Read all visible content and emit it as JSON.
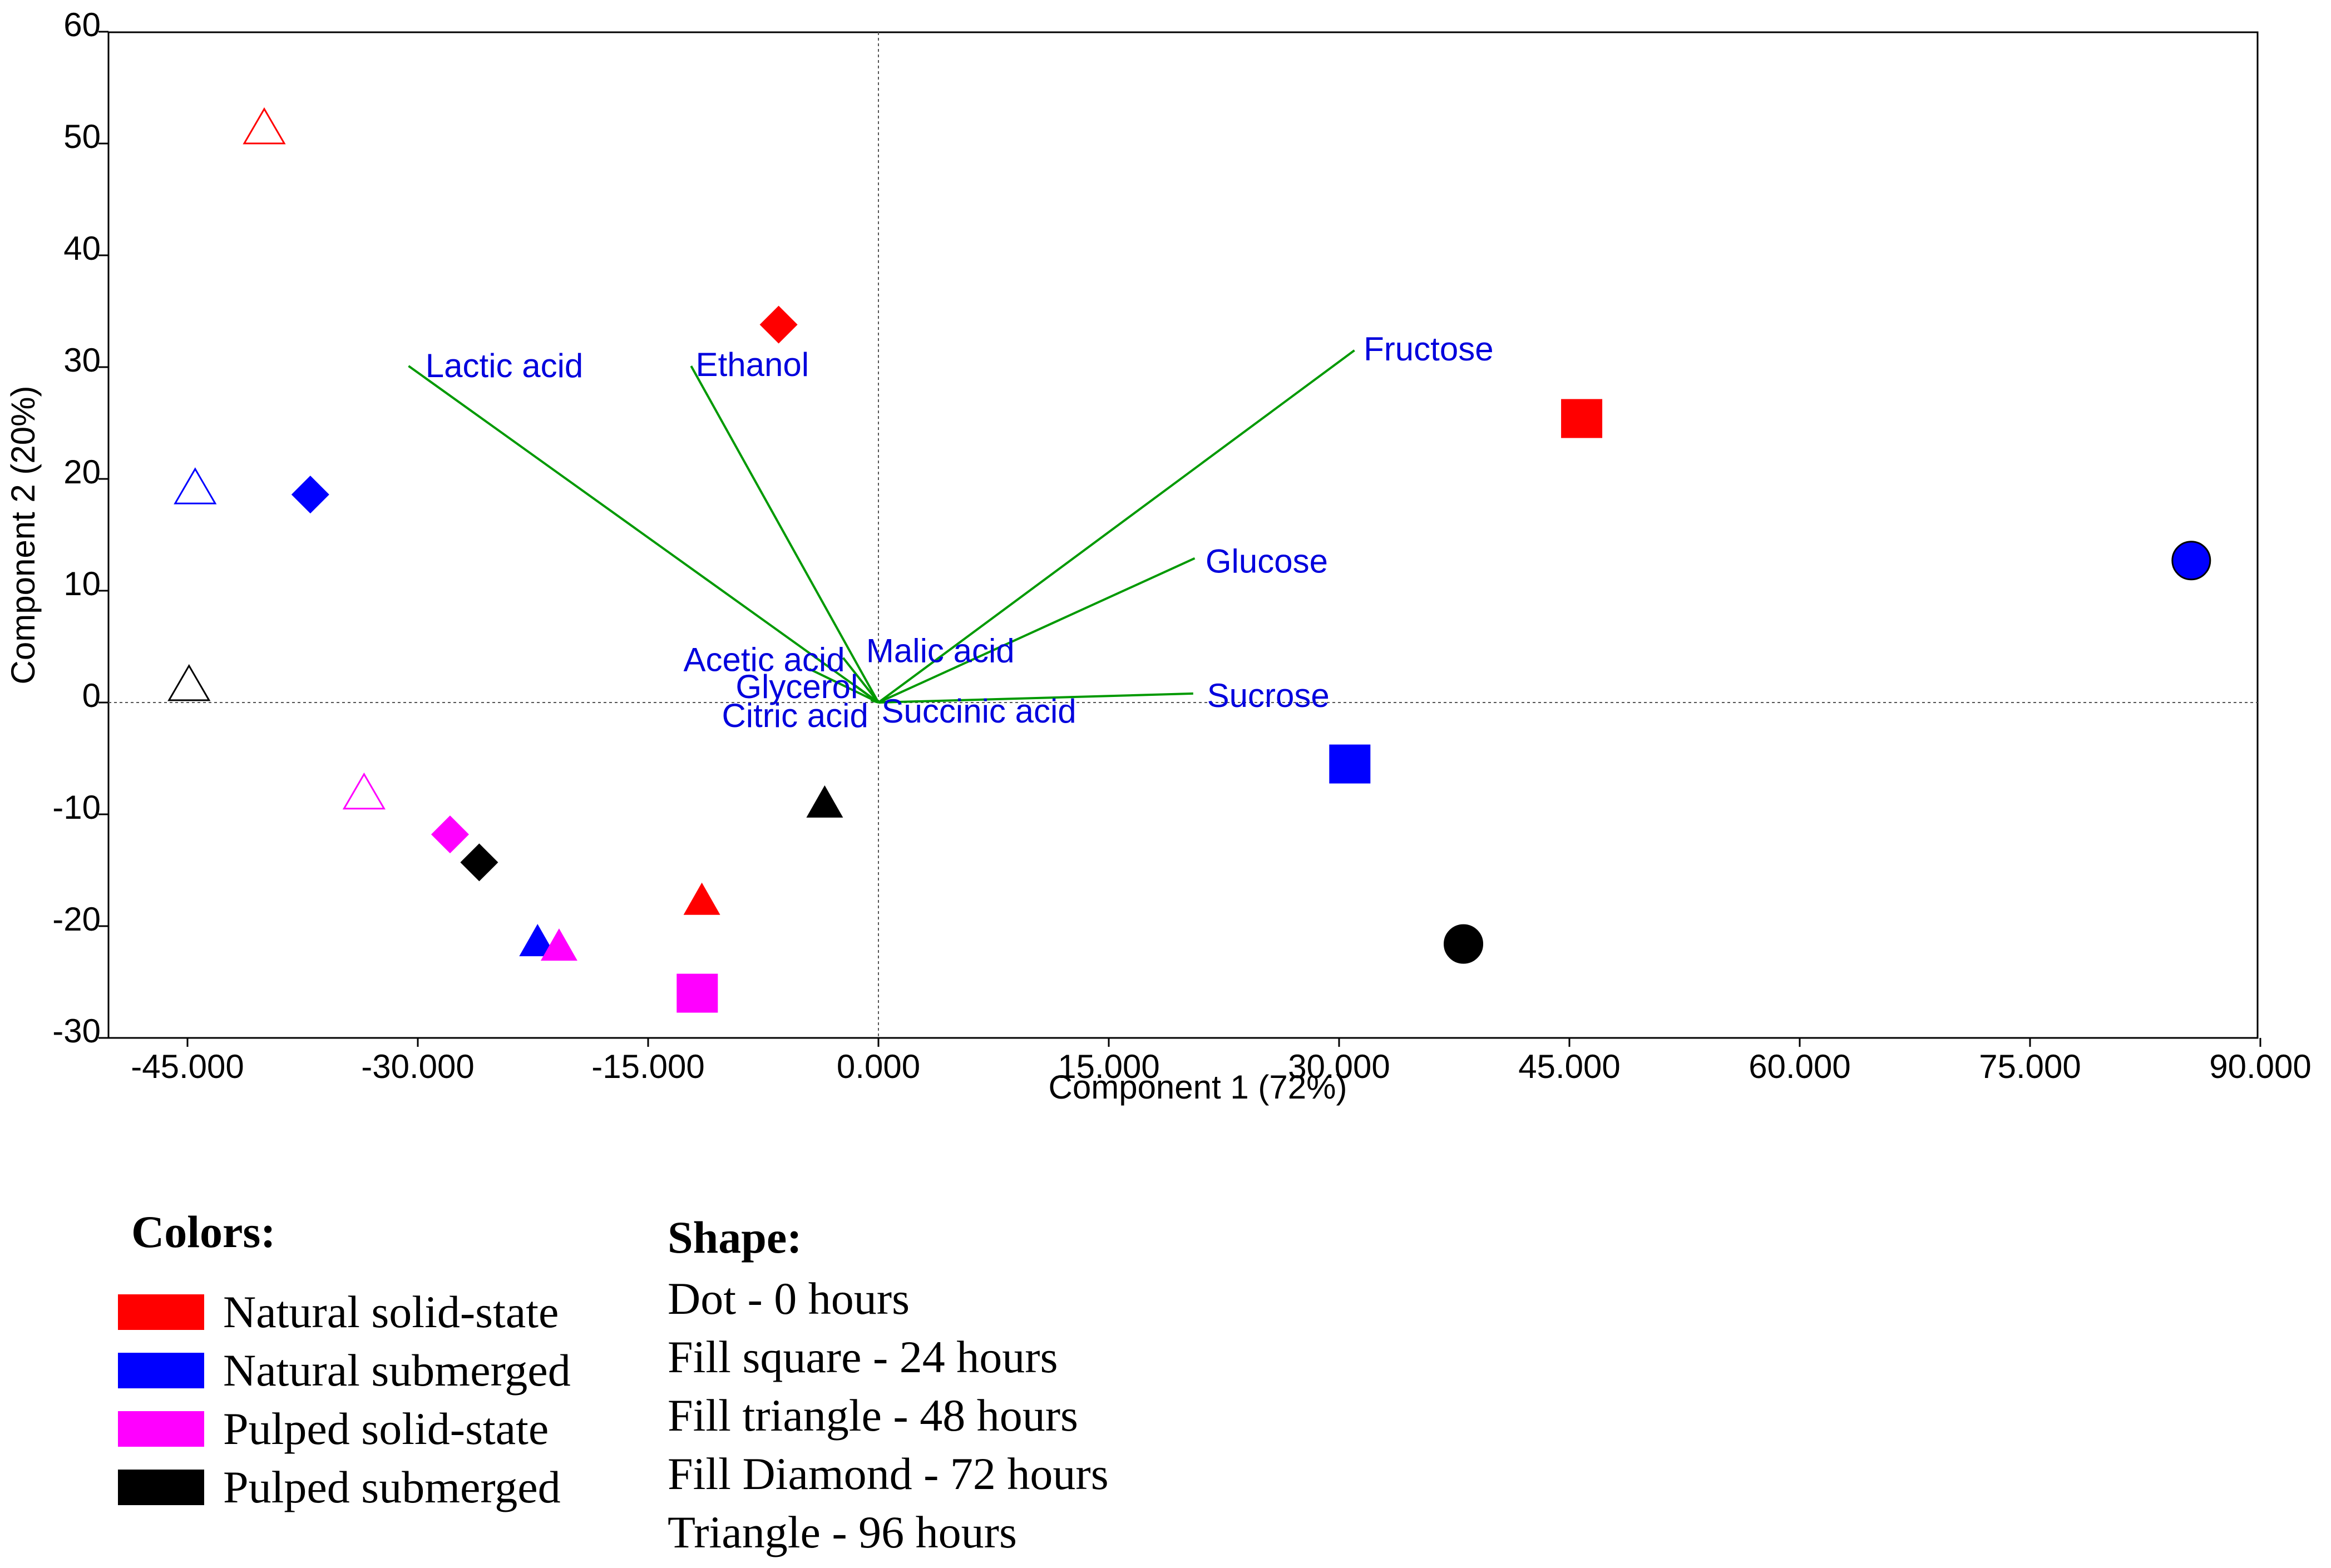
{
  "chart_data": {
    "type": "scatter",
    "subtype": "pca-biplot",
    "xlabel": "Component 1 (72%)",
    "ylabel": "Component 2 (20%)",
    "xlim": [
      -48,
      90
    ],
    "ylim": [
      -30,
      60
    ],
    "x_ticks": [
      -45,
      -30,
      -15,
      0,
      15,
      30,
      45,
      60,
      75,
      90
    ],
    "x_tick_labels": [
      "-45.000",
      "-30.000",
      "-15.000",
      "0.000",
      "15.000",
      "30.000",
      "45.000",
      "60.000",
      "75.000",
      "90.000"
    ],
    "y_ticks": [
      -30,
      -20,
      -10,
      0,
      10,
      20,
      30,
      40,
      50,
      60
    ],
    "y_tick_labels": [
      "-30",
      "-20",
      "-10",
      "0",
      "10",
      "20",
      "30",
      "40",
      "50",
      "60"
    ],
    "reference_lines": {
      "x0": true,
      "y0": true
    },
    "colors": {
      "natural_solid_state": "#ff0000",
      "natural_submerged": "#0000ff",
      "pulped_solid_state": "#ff00ff",
      "pulped_submerged": "#000000",
      "vector_line": "#009900",
      "vector_label": "#0000dd"
    },
    "points": [
      {
        "group": "natural_solid_state",
        "time": "0h",
        "marker": "dot",
        "x": null,
        "y": null
      },
      {
        "group": "natural_solid_state",
        "time": "24h",
        "marker": "square",
        "x": 45.8,
        "y": 25.4
      },
      {
        "group": "natural_solid_state",
        "time": "48h",
        "marker": "triangle-filled",
        "x": -11.5,
        "y": -17.6
      },
      {
        "group": "natural_solid_state",
        "time": "72h",
        "marker": "diamond",
        "x": -6.5,
        "y": 33.8
      },
      {
        "group": "natural_solid_state",
        "time": "96h",
        "marker": "triangle-open",
        "x": -40.0,
        "y": 51.5
      },
      {
        "group": "natural_submerged",
        "time": "0h",
        "marker": "dot",
        "x": 85.5,
        "y": 12.7
      },
      {
        "group": "natural_submerged",
        "time": "24h",
        "marker": "square",
        "x": 30.7,
        "y": -5.5
      },
      {
        "group": "natural_submerged",
        "time": "48h",
        "marker": "triangle-filled",
        "x": -22.2,
        "y": -21.3
      },
      {
        "group": "natural_submerged",
        "time": "72h",
        "marker": "diamond",
        "x": -37.0,
        "y": 18.6
      },
      {
        "group": "natural_submerged",
        "time": "96h",
        "marker": "triangle-open",
        "x": -44.5,
        "y": 19.3
      },
      {
        "group": "pulped_solid_state",
        "time": "24h",
        "marker": "square",
        "x": -11.8,
        "y": -26.0
      },
      {
        "group": "pulped_solid_state",
        "time": "48h",
        "marker": "triangle-filled",
        "x": -20.8,
        "y": -21.7
      },
      {
        "group": "pulped_solid_state",
        "time": "72h",
        "marker": "diamond",
        "x": -27.9,
        "y": -11.8
      },
      {
        "group": "pulped_solid_state",
        "time": "96h",
        "marker": "triangle-open",
        "x": -33.5,
        "y": -8.0
      },
      {
        "group": "pulped_submerged",
        "time": "0h",
        "marker": "dot",
        "x": 38.1,
        "y": -21.6
      },
      {
        "group": "pulped_submerged",
        "time": "48h",
        "marker": "triangle-filled",
        "x": -3.5,
        "y": -8.9
      },
      {
        "group": "pulped_submerged",
        "time": "72h",
        "marker": "diamond",
        "x": -26.0,
        "y": -14.3
      },
      {
        "group": "pulped_submerged",
        "time": "96h",
        "marker": "triangle-open",
        "x": -44.9,
        "y": 1.7
      }
    ],
    "vectors": [
      {
        "label": "Lactic acid",
        "x": -30.6,
        "y": 30.1,
        "label_x": -29.5,
        "label_y": 30.1
      },
      {
        "label": "Ethanol",
        "x": -12.2,
        "y": 30.1,
        "label_x": -11.9,
        "label_y": 30.2
      },
      {
        "label": "Fructose",
        "x": 31.0,
        "y": 31.5,
        "label_x": 31.6,
        "label_y": 31.6
      },
      {
        "label": "Glucose",
        "x": 20.6,
        "y": 12.9,
        "label_x": 21.3,
        "label_y": 12.6
      },
      {
        "label": "Sucrose",
        "x": 20.5,
        "y": 0.8,
        "label_x": 21.4,
        "label_y": 0.6
      },
      {
        "label": "Malic acid",
        "x": -2.3,
        "y": 4.0,
        "label_x": -0.8,
        "label_y": 4.6
      },
      {
        "label": "Acetic acid",
        "x": -4.5,
        "y": 3.0,
        "label_x": -12.7,
        "label_y": 3.8
      },
      {
        "label": "Glycerol",
        "x": -1.5,
        "y": 1.5,
        "label_x": -9.3,
        "label_y": 1.4
      },
      {
        "label": "Citric acid",
        "x": -0.5,
        "y": 0.2,
        "label_x": -10.2,
        "label_y": -1.2
      },
      {
        "label": "Succinic acid",
        "x": 0.8,
        "y": 0.1,
        "label_x": 0.2,
        "label_y": -0.8
      }
    ]
  },
  "legend": {
    "colors_title": "Colors:",
    "colors": [
      {
        "label": "Natural solid-state",
        "color": "#ff0000"
      },
      {
        "label": "Natural submerged",
        "color": "#0000ff"
      },
      {
        "label": "Pulped solid-state",
        "color": "#ff00ff"
      },
      {
        "label": "Pulped submerged",
        "color": "#000000"
      }
    ],
    "shape_title": "Shape:",
    "shapes": [
      "Dot - 0 hours",
      "Fill square - 24 hours",
      "Fill triangle - 48 hours",
      "Fill Diamond - 72 hours",
      "Triangle - 96 hours"
    ]
  }
}
